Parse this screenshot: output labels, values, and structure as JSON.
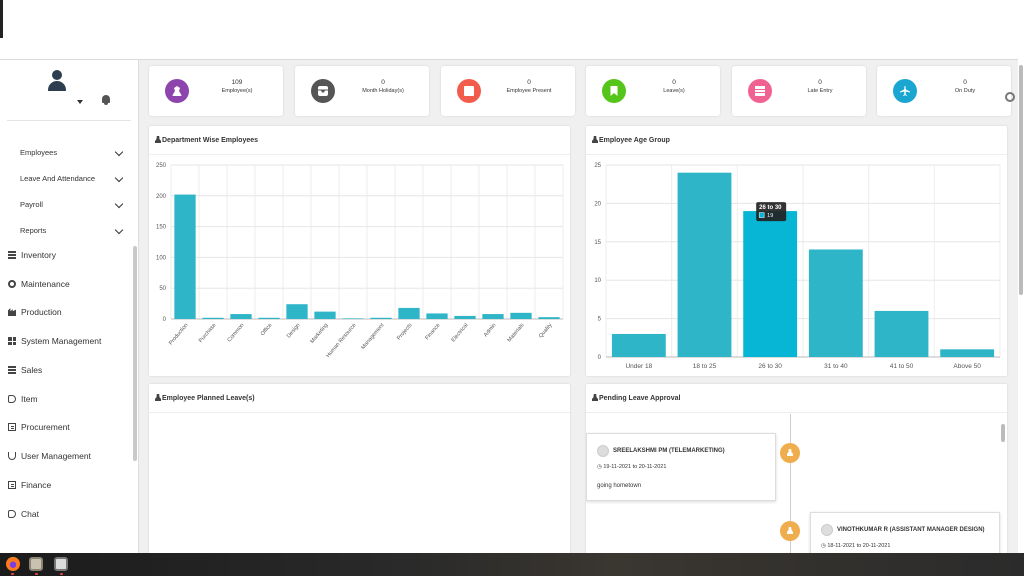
{
  "stats": [
    {
      "value": "109",
      "label": "Employee(s)",
      "color": "#8e44ad",
      "icon": "user-icon"
    },
    {
      "value": "0",
      "label": "Month Holiday(s)",
      "color": "#555555",
      "icon": "inbox-icon"
    },
    {
      "value": "0",
      "label": "Employee Present",
      "color": "#f25c4c",
      "icon": "book-icon"
    },
    {
      "value": "0",
      "label": "Leave(s)",
      "color": "#55c51b",
      "icon": "bookmark-icon"
    },
    {
      "value": "0",
      "label": "Late Entry",
      "color": "#f06292",
      "icon": "table-icon"
    },
    {
      "value": "0",
      "label": "On Duty",
      "color": "#1aa6d0",
      "icon": "plane-icon"
    }
  ],
  "sidebar": {
    "sub_items": [
      "Employees",
      "Leave And Attendance",
      "Payroll",
      "Reports"
    ],
    "items": [
      {
        "label": "Inventory",
        "icon": "bars-icon"
      },
      {
        "label": "Maintenance",
        "icon": "gear-icon"
      },
      {
        "label": "Production",
        "icon": "factory-icon"
      },
      {
        "label": "System Management",
        "icon": "grid-icon"
      },
      {
        "label": "Sales",
        "icon": "bars-icon"
      },
      {
        "label": "Item",
        "icon": "tag-icon"
      },
      {
        "label": "Procurement",
        "icon": "doc-icon"
      },
      {
        "label": "User Management",
        "icon": "user-icon"
      },
      {
        "label": "Finance",
        "icon": "doc-icon"
      },
      {
        "label": "Chat",
        "icon": "tag-icon"
      }
    ]
  },
  "panels": {
    "dept_title": "Department Wise Employees",
    "age_title": "Employee Age Group",
    "planned_title": "Employee Planned Leave(s)",
    "pending_title": "Pending Leave Approval"
  },
  "chart_data": [
    {
      "type": "bar",
      "title": "Department Wise Employees",
      "categories": [
        "Production",
        "Purchase",
        "Common",
        "Office",
        "Design",
        "Marketing",
        "Human Resource",
        "Management",
        "Projects",
        "Finance",
        "Electrical",
        "Admin",
        "Materials",
        "Quality"
      ],
      "values": [
        202,
        2,
        8,
        2,
        24,
        12,
        1,
        2,
        18,
        9,
        5,
        8,
        10,
        3
      ],
      "ylim": [
        0,
        250
      ],
      "yticks": [
        0,
        50,
        100,
        150,
        200,
        250
      ],
      "color": "#2eb5c8",
      "grid": true
    },
    {
      "type": "bar",
      "title": "Employee Age Group",
      "categories": [
        "Under 18",
        "18 to 25",
        "26 to 30",
        "31 to 40",
        "41 to 50",
        "Above 50"
      ],
      "values": [
        3,
        24,
        19,
        14,
        6,
        1
      ],
      "ylim": [
        0,
        25
      ],
      "yticks": [
        0,
        5,
        10,
        15,
        20,
        25
      ],
      "color": "#2eb5c8",
      "highlight_color": "#06b6d4",
      "grid": true,
      "tooltip": {
        "category": "26 to 30",
        "value": "19"
      }
    }
  ],
  "pending_leaves": [
    {
      "name": "SREELAKSHMI PM (TELEMARKETING)",
      "dates": "19-11-2021 to 20-11-2021",
      "reason": "going hometown"
    },
    {
      "name": "VINOTHKUMAR R (ASSISTANT MANAGER DESIGN)",
      "dates": "18-11-2021 to 20-11-2021",
      "reason": ""
    }
  ]
}
